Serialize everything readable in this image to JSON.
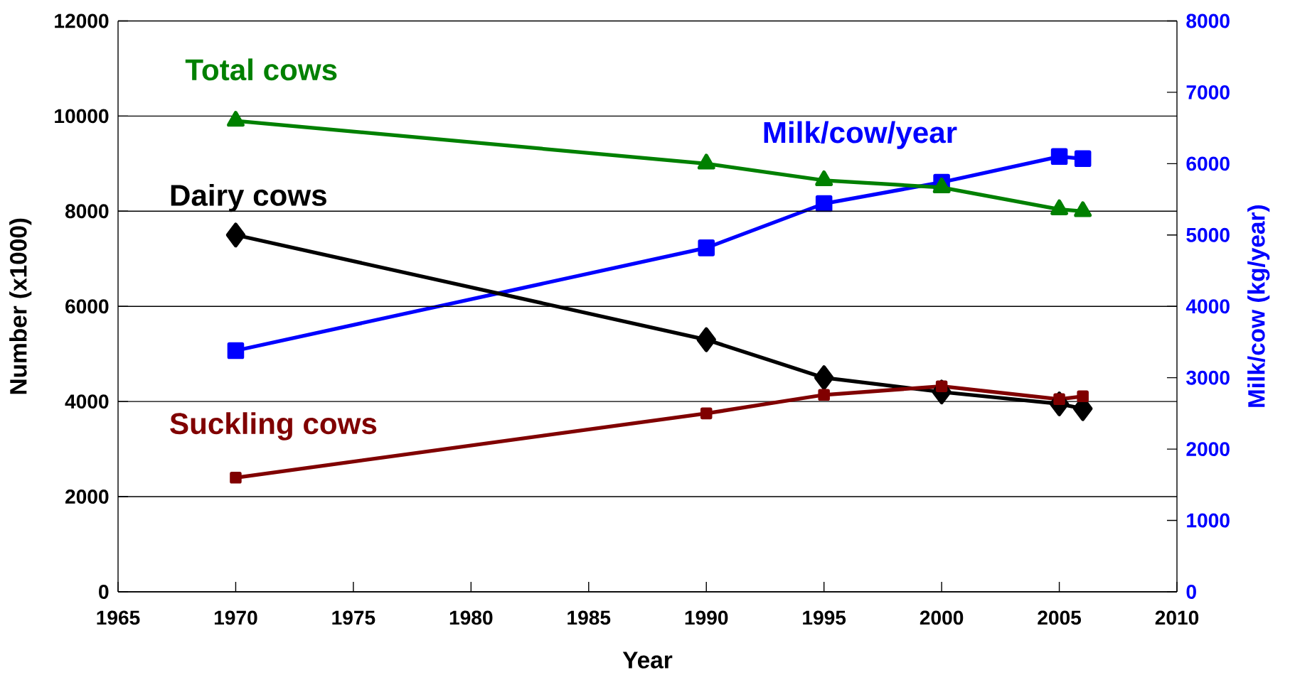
{
  "chart_data": {
    "type": "line",
    "xlabel": "Year",
    "ylabel": "Number (x1000)",
    "y2label": "Milk/cow  (kg/year)",
    "x": [
      1970,
      1990,
      1995,
      2000,
      2005,
      2006
    ],
    "series": [
      {
        "name": "Total cows",
        "color": "#008000",
        "marker": "triangle",
        "values": [
          9900,
          9000,
          8650,
          8500,
          8040,
          8000
        ]
      },
      {
        "name": "Dairy cows",
        "color": "#000000",
        "marker": "diamond",
        "values": [
          7500,
          5300,
          4500,
          4200,
          3950,
          3850
        ]
      },
      {
        "name": "Suckling cows",
        "color": "#800000",
        "marker": "square",
        "values": [
          2400,
          3750,
          4140,
          4320,
          4050,
          4110
        ]
      },
      {
        "name": "Milk/cow/year",
        "color": "#0000ff",
        "marker": "square",
        "axis": "y2",
        "values": [
          3380,
          4820,
          5440,
          5740,
          6100,
          6070
        ]
      }
    ],
    "xlim": [
      1965,
      2010
    ],
    "xticks": [
      1965,
      1970,
      1975,
      1980,
      1985,
      1990,
      1995,
      2000,
      2005,
      2010
    ],
    "ylim": [
      0,
      12000
    ],
    "yticks": [
      0,
      2000,
      4000,
      6000,
      8000,
      10000,
      12000
    ],
    "y2lim": [
      0,
      8000
    ],
    "y2ticks": [
      0,
      1000,
      2000,
      3000,
      4000,
      5000,
      6000,
      7000,
      8000
    ],
    "grid": "y",
    "line_style": "solid"
  }
}
